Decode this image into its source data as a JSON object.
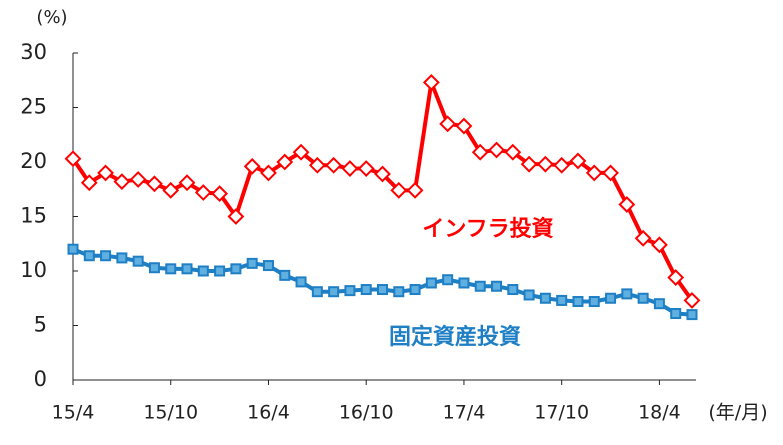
{
  "chart_data": {
    "type": "line",
    "y_unit_label": "(%)",
    "x_unit_label": "(年/月)",
    "categories": [
      "15/4",
      null,
      null,
      null,
      null,
      null,
      "15/10",
      null,
      null,
      null,
      null,
      null,
      "16/4",
      null,
      null,
      null,
      null,
      null,
      "16/10",
      null,
      null,
      null,
      null,
      null,
      "17/4",
      null,
      null,
      null,
      null,
      null,
      "17/10",
      null,
      null,
      null,
      null,
      null,
      "18/4",
      null,
      null
    ],
    "series": [
      {
        "name": "インフラ投資",
        "color": "#ff0000",
        "marker": "diamond",
        "values": [
          20.3,
          18.1,
          19.0,
          18.2,
          18.4,
          18.0,
          17.4,
          18.1,
          17.2,
          17.1,
          15.0,
          19.6,
          19.0,
          20.0,
          20.9,
          19.7,
          19.7,
          19.4,
          19.4,
          18.9,
          17.4,
          17.4,
          27.3,
          23.5,
          23.3,
          20.9,
          21.1,
          20.9,
          19.8,
          19.8,
          19.7,
          20.1,
          19.0,
          19.0,
          16.1,
          13.0,
          12.4,
          9.4,
          7.3
        ]
      },
      {
        "name": "固定資産投資",
        "color": "#1f7fc4",
        "marker": "square",
        "values": [
          12.0,
          11.4,
          11.4,
          11.2,
          10.9,
          10.3,
          10.2,
          10.2,
          10.0,
          10.0,
          10.2,
          10.7,
          10.5,
          9.6,
          9.0,
          8.1,
          8.1,
          8.2,
          8.3,
          8.3,
          8.1,
          8.3,
          8.9,
          9.2,
          8.9,
          8.6,
          8.6,
          8.3,
          7.8,
          7.5,
          7.3,
          7.2,
          7.2,
          7.5,
          7.9,
          7.5,
          7.0,
          6.1,
          6.0
        ]
      }
    ],
    "ylim": [
      0,
      30
    ],
    "yticks": [
      0,
      5,
      10,
      15,
      20,
      25,
      30
    ],
    "grid": false
  }
}
